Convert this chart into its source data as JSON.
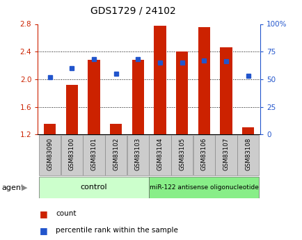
{
  "title": "GDS1729 / 24102",
  "samples": [
    "GSM83090",
    "GSM83100",
    "GSM83101",
    "GSM83102",
    "GSM83103",
    "GSM83104",
    "GSM83105",
    "GSM83106",
    "GSM83107",
    "GSM83108"
  ],
  "red_values": [
    1.35,
    1.92,
    2.28,
    1.35,
    2.28,
    2.77,
    2.4,
    2.75,
    2.46,
    1.3
  ],
  "blue_values": [
    52,
    60,
    68,
    55,
    68,
    65,
    65,
    67,
    66,
    53
  ],
  "ylim_left": [
    1.2,
    2.8
  ],
  "ylim_right": [
    0,
    100
  ],
  "yticks_left": [
    1.2,
    1.6,
    2.0,
    2.4,
    2.8
  ],
  "yticks_right": [
    0,
    25,
    50,
    75,
    100
  ],
  "ytick_labels_right": [
    "0",
    "25",
    "50",
    "75",
    "100%"
  ],
  "bar_color": "#cc2200",
  "dot_color": "#2255cc",
  "bg_color": "#ffffff",
  "control_group": [
    0,
    1,
    2,
    3,
    4
  ],
  "treatment_group": [
    5,
    6,
    7,
    8,
    9
  ],
  "control_label": "control",
  "treatment_label": "miR-122 antisense oligonucleotide",
  "agent_label": "agent",
  "legend_count": "count",
  "legend_pct": "percentile rank within the sample",
  "control_color": "#ccffcc",
  "treatment_color": "#88ee88",
  "left_axis_color": "#cc2200",
  "right_axis_color": "#2255cc",
  "tick_bg_color": "#cccccc"
}
